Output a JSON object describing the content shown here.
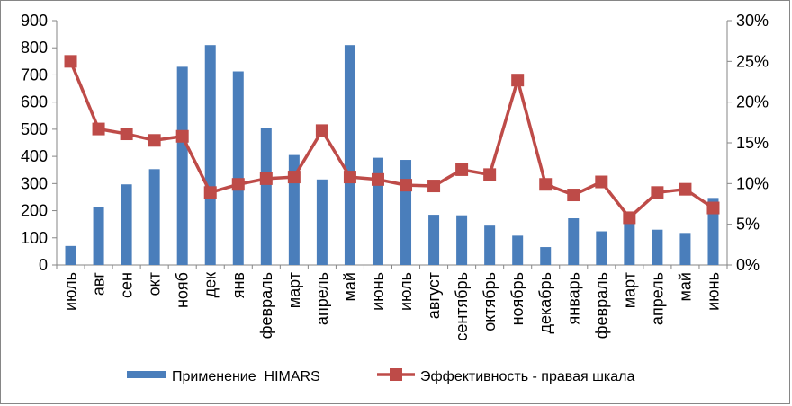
{
  "chart_data": {
    "type": "bar+line",
    "categories": [
      "июль",
      "авг",
      "сен",
      "окт",
      "нояб",
      "дек",
      "янв",
      "февраль",
      "март",
      "апрель",
      "май",
      "июнь",
      "июль",
      "август",
      "сентябрь",
      "октябрь",
      "ноябрь",
      "декабрь",
      "январь",
      "февраль",
      "март",
      "апрель",
      "май",
      "июнь"
    ],
    "series": [
      {
        "name": "Применение  HIMARS",
        "type": "bar",
        "axis": "left",
        "color": "#4a7ebb",
        "values": [
          70,
          215,
          297,
          353,
          730,
          810,
          713,
          505,
          405,
          315,
          810,
          395,
          387,
          185,
          183,
          145,
          108,
          66,
          172,
          124,
          172,
          130,
          118,
          247
        ]
      },
      {
        "name": "Эффективность - правая шкала",
        "type": "line",
        "axis": "right",
        "color": "#be4b48",
        "values": [
          0.25,
          0.167,
          0.161,
          0.153,
          0.158,
          0.089,
          0.099,
          0.106,
          0.108,
          0.165,
          0.108,
          0.105,
          0.098,
          0.097,
          0.117,
          0.111,
          0.227,
          0.099,
          0.086,
          0.102,
          0.058,
          0.089,
          0.093,
          0.07
        ]
      }
    ],
    "y_left": {
      "min": 0,
      "max": 900,
      "step": 100,
      "tick_labels": [
        "0",
        "100",
        "200",
        "300",
        "400",
        "500",
        "600",
        "700",
        "800",
        "900"
      ]
    },
    "y_right": {
      "min": 0,
      "max": 0.3,
      "step": 0.05,
      "tick_labels": [
        "0%",
        "5%",
        "10%",
        "15%",
        "20%",
        "25%",
        "30%"
      ]
    },
    "grid": false,
    "legend_position": "bottom"
  }
}
